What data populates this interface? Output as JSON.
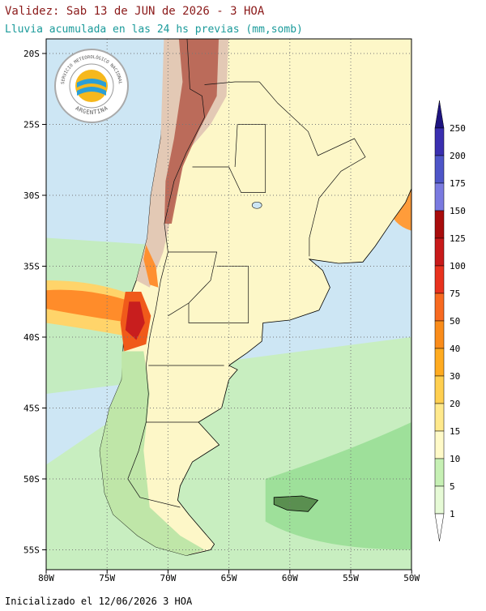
{
  "header": {
    "title": "Validez: Sab 13 de JUN de 2026 - 3 HOA",
    "subtitle": "Lluvia acumulada en las 24 hs previas (mm,somb)"
  },
  "logo": {
    "top_text": "SERVICIO METEOROLÓGICO NACIONAL",
    "bottom_text": "ARGENTINA"
  },
  "map": {
    "lat_labels": [
      "20S",
      "25S",
      "30S",
      "35S",
      "40S",
      "45S",
      "50S",
      "55S"
    ],
    "lon_labels": [
      "80W",
      "75W",
      "70W",
      "65W",
      "60W",
      "55W",
      "50W"
    ]
  },
  "legend": {
    "labels": [
      "250",
      "200",
      "175",
      "150",
      "125",
      "100",
      "75",
      "50",
      "40",
      "30",
      "20",
      "15",
      "10",
      "5",
      "1"
    ]
  },
  "footer": {
    "init": "Inicializado el 12/06/2026 3 HOA"
  }
}
